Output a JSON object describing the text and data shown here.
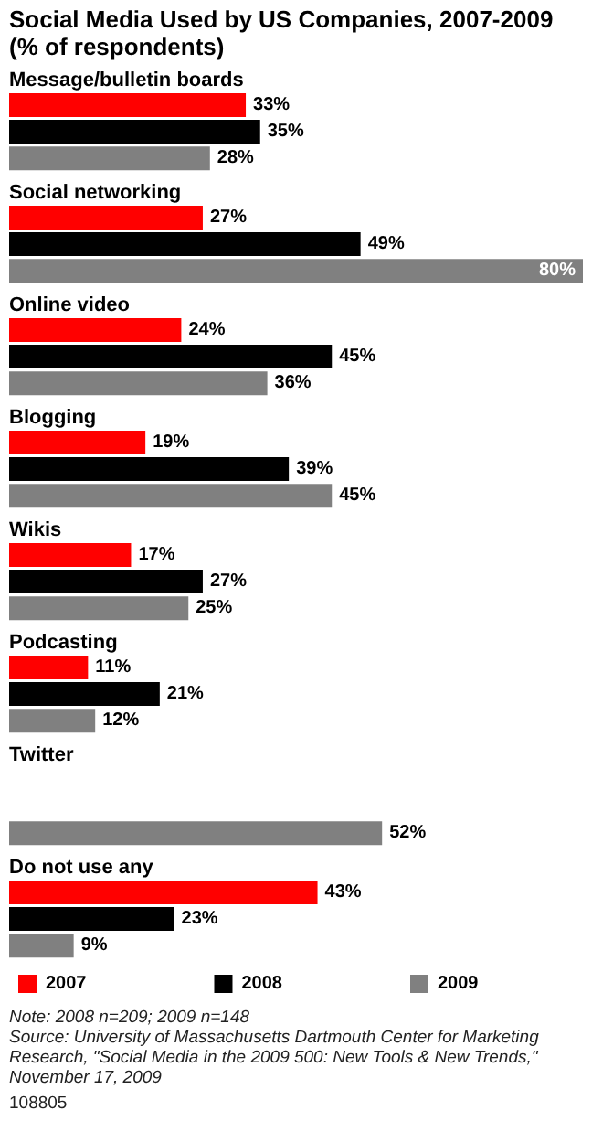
{
  "chart_data": {
    "type": "bar",
    "orientation": "horizontal",
    "title": "Social Media Used by US Companies, 2007-2009 (% of respondents)",
    "categories": [
      "Message/bulletin boards",
      "Social networking",
      "Online video",
      "Blogging",
      "Wikis",
      "Podcasting",
      "Twitter",
      "Do not use any"
    ],
    "series": [
      {
        "name": "2007",
        "color": "#ff0000",
        "values": [
          33,
          27,
          24,
          19,
          17,
          11,
          null,
          43
        ],
        "value_labels": [
          "33%",
          "27%",
          "24%",
          "19%",
          "17%",
          "11%",
          null,
          "43%"
        ]
      },
      {
        "name": "2008",
        "color": "#000000",
        "values": [
          35,
          49,
          45,
          39,
          27,
          21,
          null,
          23
        ],
        "value_labels": [
          "35%",
          "49%",
          "45%",
          "39%",
          "27%",
          "21%",
          null,
          "23%"
        ]
      },
      {
        "name": "2009",
        "color": "#808080",
        "values": [
          28,
          80,
          36,
          45,
          25,
          12,
          52,
          9
        ],
        "value_labels": [
          "28%",
          "80%",
          "36%",
          "45%",
          "25%",
          "12%",
          "52%",
          "9%"
        ]
      }
    ],
    "legend": "bottom left",
    "annotations": [
      "Note: 2008 n=209; 2009 n=148",
      "Source: University of Massachusetts Dartmouth Center for Marketing Research, \"Social Media in the 2009 500: New Tools & New Trends,\" November 17, 2009",
      "108805"
    ]
  }
}
